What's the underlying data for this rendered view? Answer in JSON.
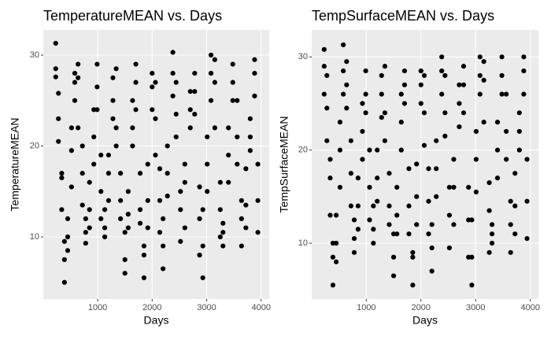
{
  "chart_data": [
    {
      "type": "scatter",
      "title": "TemperatureMEAN vs. Days",
      "x_label": "Days",
      "y_label": "TemperatureMEAN",
      "color": "#000000",
      "grid": true,
      "xlim": [
        2,
        4148
      ],
      "ylim": [
        3.16,
        32.77
      ],
      "xticks": [
        1000,
        2000,
        3000,
        4000
      ],
      "yticks": [
        10,
        20,
        30
      ],
      "x": [
        230,
        230,
        230,
        280,
        280,
        280,
        340,
        340,
        340,
        390,
        390,
        390,
        450,
        450,
        450,
        520,
        520,
        520,
        580,
        580,
        580,
        640,
        640,
        640,
        720,
        720,
        720,
        780,
        780,
        780,
        850,
        850,
        850,
        930,
        930,
        930,
        990,
        990,
        990,
        1060,
        1060,
        1060,
        1130,
        1130,
        1130,
        1200,
        1200,
        1200,
        1280,
        1280,
        1280,
        1340,
        1340,
        1340,
        1420,
        1420,
        1420,
        1500,
        1500,
        1500,
        1560,
        1560,
        1560,
        1640,
        1640,
        1640,
        1700,
        1700,
        1700,
        1780,
        1780,
        1780,
        1850,
        1850,
        1850,
        1920,
        1920,
        1920,
        2000,
        2000,
        2000,
        2060,
        2060,
        2060,
        2140,
        2140,
        2140,
        2200,
        2200,
        2200,
        2280,
        2280,
        2280,
        2380,
        2380,
        2380,
        2440,
        2440,
        2440,
        2520,
        2520,
        2520,
        2600,
        2600,
        2600,
        2700,
        2700,
        2700,
        2780,
        2780,
        2780,
        2870,
        2870,
        2870,
        2930,
        2930,
        2930,
        3010,
        3010,
        3010,
        3080,
        3080,
        3080,
        3150,
        3150,
        3150,
        3250,
        3250,
        3250,
        3300,
        3300,
        3300,
        3400,
        3400,
        3400,
        3480,
        3480,
        3480,
        3560,
        3560,
        3560,
        3640,
        3640,
        3640,
        3720,
        3720,
        3720,
        3800,
        3800,
        3800,
        3880,
        3880,
        3880,
        3940,
        3940,
        3940
      ],
      "values": [
        31.3,
        28.5,
        27.6,
        25.8,
        23,
        20.5,
        17,
        16.5,
        13,
        9.5,
        7.5,
        5,
        12,
        10,
        8.5,
        22,
        19.5,
        15.5,
        28,
        27,
        25,
        29,
        27.5,
        22,
        20,
        17,
        13.5,
        12,
        10.5,
        9.3,
        16,
        13,
        11,
        24,
        21,
        18,
        29,
        26.5,
        24,
        19,
        15,
        12,
        13,
        11,
        10,
        19,
        17,
        14,
        27.5,
        25,
        23,
        28.5,
        22,
        20,
        17,
        14,
        12,
        10.5,
        7.5,
        6,
        15,
        12.5,
        11,
        25,
        22,
        20,
        29,
        27,
        24,
        17,
        13,
        11.5,
        9,
        8,
        5.5,
        18,
        14,
        11,
        28,
        26.5,
        24,
        27,
        23,
        19,
        17.5,
        14,
        10.5,
        12,
        9,
        6.5,
        20,
        17,
        14.5,
        30.3,
        28,
        25.5,
        27,
        23.5,
        21,
        15,
        13,
        9.5,
        18,
        16,
        11,
        26,
        24,
        22,
        28,
        26,
        23.5,
        15.5,
        12,
        8,
        13,
        9,
        5.5,
        21,
        18,
        15,
        30,
        28,
        25,
        29.5,
        27,
        22,
        16,
        13,
        10,
        11.5,
        9,
        10.5,
        22,
        19,
        16,
        29,
        27,
        25,
        25,
        21,
        18,
        14,
        12,
        9,
        13.5,
        11,
        17.5,
        23,
        21,
        19.5,
        29.5,
        28,
        25.5,
        18,
        14,
        10.5
      ]
    },
    {
      "type": "scatter",
      "title": "TempSurfaceMEAN vs. Days",
      "x_label": "Days",
      "y_label": "TempSurfaceMEAN",
      "color": "#000000",
      "grid": true,
      "xlim": [
        2,
        4148
      ],
      "ylim": [
        4.0,
        32.9
      ],
      "xticks": [
        1000,
        2000,
        3000,
        4000
      ],
      "yticks": [
        10,
        20,
        30
      ],
      "x": [
        230,
        230,
        230,
        280,
        280,
        280,
        340,
        340,
        340,
        390,
        390,
        390,
        450,
        450,
        450,
        520,
        520,
        520,
        580,
        580,
        580,
        640,
        640,
        640,
        720,
        720,
        720,
        780,
        780,
        780,
        850,
        850,
        850,
        930,
        930,
        930,
        990,
        990,
        990,
        1060,
        1060,
        1060,
        1130,
        1130,
        1130,
        1200,
        1200,
        1200,
        1280,
        1280,
        1280,
        1340,
        1340,
        1340,
        1420,
        1420,
        1420,
        1500,
        1500,
        1500,
        1560,
        1560,
        1560,
        1640,
        1640,
        1640,
        1700,
        1700,
        1700,
        1780,
        1780,
        1780,
        1850,
        1850,
        1850,
        1920,
        1920,
        1920,
        2000,
        2000,
        2000,
        2060,
        2060,
        2060,
        2140,
        2140,
        2140,
        2200,
        2200,
        2200,
        2280,
        2280,
        2280,
        2380,
        2380,
        2380,
        2440,
        2440,
        2440,
        2520,
        2520,
        2520,
        2600,
        2600,
        2600,
        2700,
        2700,
        2700,
        2780,
        2780,
        2780,
        2870,
        2870,
        2870,
        2930,
        2930,
        2930,
        3010,
        3010,
        3010,
        3080,
        3080,
        3080,
        3150,
        3150,
        3150,
        3250,
        3250,
        3250,
        3300,
        3300,
        3300,
        3400,
        3400,
        3400,
        3480,
        3480,
        3480,
        3560,
        3560,
        3560,
        3640,
        3640,
        3640,
        3720,
        3720,
        3720,
        3800,
        3800,
        3800,
        3880,
        3880,
        3880,
        3940,
        3940,
        3940
      ],
      "values": [
        30.8,
        29,
        26,
        28,
        24.5,
        21,
        19,
        17,
        13,
        10,
        8.5,
        5.5,
        13,
        10,
        8,
        23,
        20,
        16,
        31.3,
        28.5,
        26,
        29.5,
        27,
        24.5,
        21,
        17.5,
        14,
        12.5,
        10.5,
        9,
        17,
        14,
        11.5,
        25,
        22,
        19,
        28.5,
        26,
        24,
        20,
        16,
        12.5,
        14,
        11.5,
        10,
        20,
        17,
        14.5,
        28,
        26,
        23.5,
        29,
        24,
        21,
        17.5,
        14,
        12,
        11,
        8.5,
        6.5,
        16,
        13,
        11,
        26,
        23,
        20,
        28.5,
        27,
        25,
        18,
        14,
        11,
        9,
        8.5,
        5.5,
        18.5,
        15,
        12,
        28.5,
        27,
        25,
        28,
        24,
        20.5,
        18,
        14.5,
        11,
        12,
        9.5,
        7,
        21,
        18,
        15,
        30,
        28.5,
        26,
        28,
        24,
        21.5,
        16,
        13,
        9.5,
        19,
        16,
        12,
        27,
        25,
        22.5,
        29,
        27,
        24,
        16,
        12.5,
        8.5,
        12.5,
        8.5,
        5.5,
        22,
        19,
        15.5,
        30,
        28,
        26,
        29.5,
        27.5,
        23,
        16.5,
        13.5,
        9,
        12,
        10,
        11,
        23,
        20,
        17,
        30,
        28,
        26,
        26,
        22,
        19,
        14.5,
        12,
        9,
        14,
        11,
        17.5,
        24,
        22,
        20,
        30,
        28.5,
        26,
        19,
        14.5,
        10.5
      ]
    }
  ]
}
